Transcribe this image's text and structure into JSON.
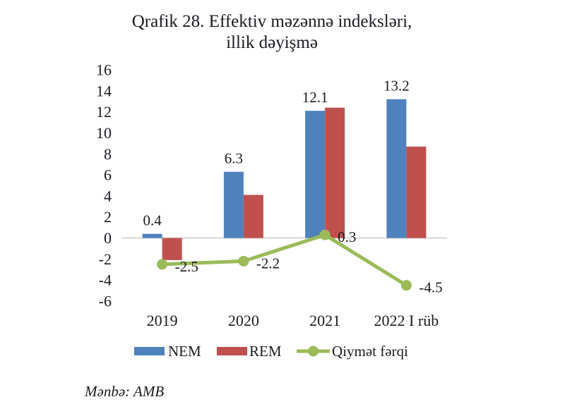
{
  "title": {
    "line1": "Qrafik 28. Effektiv məzənnə indeksləri,",
    "line2": "illik dəyişmə"
  },
  "source": "Mənbə: AMB",
  "chart_data": {
    "type": "bar+line",
    "title": "Qrafik 28. Effektiv məzənnə indeksləri, illik dəyişmə",
    "categories": [
      "2019",
      "2020",
      "2021",
      "2022 I rüb"
    ],
    "series": [
      {
        "name": "NEM",
        "type": "bar",
        "color": "#4F81BD",
        "values": [
          0.4,
          6.3,
          12.1,
          13.2
        ],
        "data_labels": [
          "0.4",
          "6.3",
          "12.1",
          "13.2"
        ]
      },
      {
        "name": "REM",
        "type": "bar",
        "color": "#C0504D",
        "values": [
          -2.1,
          4.1,
          12.4,
          8.7
        ],
        "data_labels": null
      },
      {
        "name": "Qiymət fərqi",
        "type": "line",
        "color": "#9BBB59",
        "values": [
          -2.5,
          -2.2,
          0.3,
          -4.5
        ],
        "data_labels": [
          "-2.5",
          "-2.2",
          "0.3",
          "-4.5"
        ]
      }
    ],
    "xlabel": "",
    "ylabel": "",
    "ylim": [
      -6,
      16
    ],
    "ytick_step": 2,
    "yticks": [
      16,
      14,
      12,
      10,
      8,
      6,
      4,
      2,
      0,
      -2,
      -4,
      -6
    ],
    "grid": false,
    "axis_line_color": "#d6d6d6",
    "text_color": "#1b1b22",
    "legend_position": "bottom"
  }
}
